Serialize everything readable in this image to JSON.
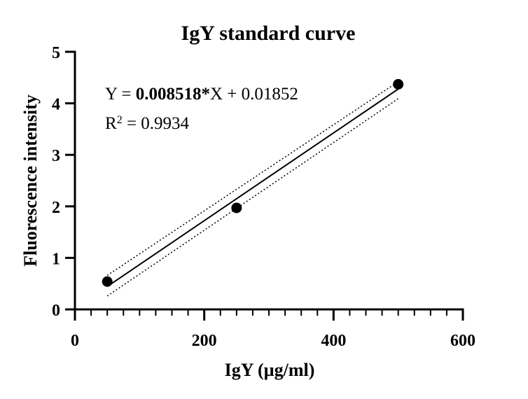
{
  "chart_data": {
    "type": "scatter",
    "title": "IgY standard curve",
    "xlabel": "IgY (µg/ml)",
    "ylabel": "Fluorescence intensity",
    "xlim": [
      0,
      600
    ],
    "ylim": [
      0,
      5
    ],
    "x_ticks": [
      0,
      200,
      400,
      600
    ],
    "y_ticks": [
      0,
      1,
      2,
      3,
      4,
      5
    ],
    "x_minor_step": 25,
    "points": [
      {
        "x": 50,
        "y": 0.54
      },
      {
        "x": 250,
        "y": 1.97
      },
      {
        "x": 500,
        "y": 4.37
      }
    ],
    "fit": {
      "slope": 0.008518,
      "intercept": 0.01852,
      "x_range": [
        50,
        500
      ],
      "ci_lower": {
        "y_at_start": 0.26,
        "y_at_end": 4.09
      },
      "ci_upper": {
        "y_at_start": 0.66,
        "y_at_end": 4.42
      }
    },
    "equation": {
      "prefix": "Y = ",
      "slope_text": "0.008518*",
      "suffix": "X + 0.01852"
    },
    "r_squared": {
      "label": "R",
      "superscript": "2",
      "value_text": " = 0.9934"
    },
    "grid": false,
    "colors": {
      "marks": "#000000",
      "background": "#ffffff"
    }
  }
}
